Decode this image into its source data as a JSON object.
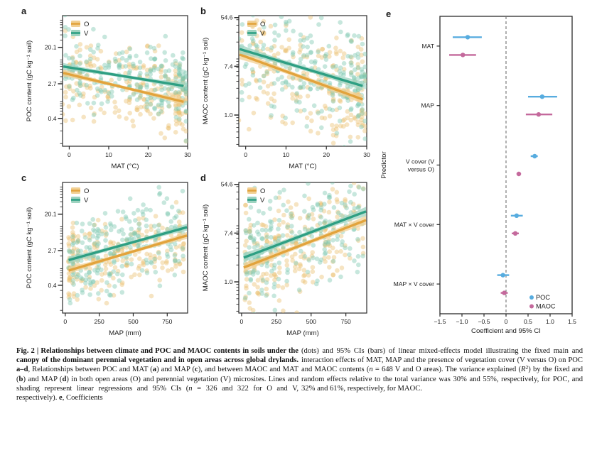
{
  "figure_label": "Fig. 2",
  "colors": {
    "o": {
      "line": "#E2A33C",
      "band": "#F1D094",
      "point": "#E9BE6E"
    },
    "v": {
      "line": "#2E9F83",
      "band": "#9ED3C0",
      "point": "#79C6AD"
    },
    "poc": "#57ACDF",
    "maoc": "#C4699C",
    "axis": "#2B2B2B",
    "zero_line": "#707070"
  },
  "chart_data": [
    {
      "id": "a",
      "letter": "a",
      "type": "scatter",
      "x_var": "MAT",
      "xlabel": "MAT (°C)",
      "ylabel": "POC content (gC kg⁻¹ soil)",
      "y_scale": "log",
      "grid": false,
      "legend_position": "top-left",
      "x_range": [
        -1.7,
        30
      ],
      "y_ln_range": [
        -2.45,
        4.75
      ],
      "x_ticks": [
        {
          "label": "0",
          "value": 0
        },
        {
          "label": "10",
          "value": 10
        },
        {
          "label": "20",
          "value": 20
        },
        {
          "label": "30",
          "value": 30
        }
      ],
      "y_ticks": [
        {
          "label": "20.1",
          "value": 20.1
        },
        {
          "label": "2.7",
          "value": 2.7
        },
        {
          "label": "0.4",
          "value": 0.4
        }
      ],
      "legend": [
        "O",
        "V"
      ],
      "series": [
        {
          "name": "O",
          "key": "o",
          "n": 326,
          "trend": {
            "x": [
              -1.5,
              29
            ],
            "y": [
              4.9,
              1.0
            ]
          }
        },
        {
          "name": "V",
          "key": "v",
          "n": 322,
          "trend": {
            "x": [
              -1.5,
              29
            ],
            "y": [
              7.0,
              2.4
            ]
          }
        }
      ]
    },
    {
      "id": "b",
      "letter": "b",
      "type": "scatter",
      "x_var": "MAT",
      "xlabel": "MAT (°C)",
      "ylabel": "MAOC content (gC kg⁻¹ soil)",
      "y_scale": "log",
      "grid": false,
      "legend_position": "top-left",
      "x_range": [
        -1.7,
        30
      ],
      "y_ln_range": [
        -1.28,
        4.08
      ],
      "x_ticks": [
        {
          "label": "0",
          "value": 0
        },
        {
          "label": "10",
          "value": 10
        },
        {
          "label": "20",
          "value": 20
        },
        {
          "label": "30",
          "value": 30
        }
      ],
      "y_ticks": [
        {
          "label": "54.6",
          "value": 54.6
        },
        {
          "label": "7.4",
          "value": 7.4
        },
        {
          "label": "1.0",
          "value": 1.0
        }
      ],
      "legend": [
        "O",
        "V"
      ],
      "series": [
        {
          "name": "O",
          "key": "o",
          "n": 326,
          "trend": {
            "x": [
              -1.5,
              29
            ],
            "y": [
              12.0,
              1.9
            ]
          }
        },
        {
          "name": "V",
          "key": "v",
          "n": 322,
          "trend": {
            "x": [
              -1.5,
              29
            ],
            "y": [
              15.0,
              3.3
            ]
          }
        }
      ]
    },
    {
      "id": "c",
      "letter": "c",
      "type": "scatter",
      "x_var": "MAP",
      "xlabel": "MAP (mm)",
      "ylabel": "POC content (gC kg⁻¹ soil)",
      "y_scale": "log",
      "grid": false,
      "legend_position": "top-left",
      "x_range": [
        -20,
        900
      ],
      "y_ln_range": [
        -2.45,
        4.75
      ],
      "x_ticks": [
        {
          "label": "0",
          "value": 0
        },
        {
          "label": "250",
          "value": 250
        },
        {
          "label": "500",
          "value": 500
        },
        {
          "label": "750",
          "value": 750
        }
      ],
      "y_ticks": [
        {
          "label": "20.1",
          "value": 20.1
        },
        {
          "label": "2.7",
          "value": 2.7
        },
        {
          "label": "0.4",
          "value": 0.4
        }
      ],
      "legend": [
        "O",
        "V"
      ],
      "series": [
        {
          "name": "O",
          "key": "o",
          "n": 326,
          "trend": {
            "x": [
              25,
              895
            ],
            "y": [
              0.9,
              6.2
            ]
          }
        },
        {
          "name": "V",
          "key": "v",
          "n": 322,
          "trend": {
            "x": [
              25,
              895
            ],
            "y": [
              1.6,
              9.8
            ]
          }
        }
      ]
    },
    {
      "id": "d",
      "letter": "d",
      "type": "scatter",
      "x_var": "MAP",
      "xlabel": "MAP (mm)",
      "ylabel": "MAOC content (gC kg⁻¹ soil)",
      "y_scale": "log",
      "grid": false,
      "legend_position": "top-left",
      "x_range": [
        -20,
        900
      ],
      "y_ln_range": [
        -1.28,
        4.08
      ],
      "x_ticks": [
        {
          "label": "0",
          "value": 0
        },
        {
          "label": "250",
          "value": 250
        },
        {
          "label": "500",
          "value": 500
        },
        {
          "label": "750",
          "value": 750
        }
      ],
      "y_ticks": [
        {
          "label": "54.6",
          "value": 54.6
        },
        {
          "label": "7.4",
          "value": 7.4
        },
        {
          "label": "1.0",
          "value": 1.0
        }
      ],
      "legend": [
        "O",
        "V"
      ],
      "series": [
        {
          "name": "O",
          "key": "o",
          "n": 326,
          "trend": {
            "x": [
              15,
              895
            ],
            "y": [
              1.8,
              12.6
            ]
          }
        },
        {
          "name": "V",
          "key": "v",
          "n": 322,
          "trend": {
            "x": [
              15,
              895
            ],
            "y": [
              2.7,
              18.0
            ]
          }
        }
      ]
    },
    {
      "id": "e",
      "letter": "e",
      "type": "dot_interval",
      "xlabel": "Coefficient and 95% CI",
      "ylabel": "Predictor",
      "x_range": [
        -1.5,
        1.5
      ],
      "zero_line": 0,
      "grid": false,
      "legend_position": "bottom-right",
      "x_ticks": [
        {
          "label": "−1.5",
          "value": -1.5
        },
        {
          "label": "−1.0",
          "value": -1.0
        },
        {
          "label": "−0.5",
          "value": -0.5
        },
        {
          "label": "0",
          "value": 0
        },
        {
          "label": "0.5",
          "value": 0.5
        },
        {
          "label": "1.0",
          "value": 1.0
        },
        {
          "label": "1.5",
          "value": 1.5
        }
      ],
      "categories": [
        {
          "label": "MAT",
          "lines": [
            "MAT"
          ]
        },
        {
          "label": "MAP",
          "lines": [
            "MAP"
          ]
        },
        {
          "label": "V cover (V versus O)",
          "lines": [
            "V cover (V",
            "versus O)"
          ]
        },
        {
          "label": "MAT × V cover",
          "lines": [
            "MAT × V cover"
          ]
        },
        {
          "label": "MAP × V cover",
          "lines": [
            "MAP × V cover"
          ]
        }
      ],
      "series": [
        {
          "name": "POC",
          "color_key": "poc",
          "values": [
            {
              "est": -0.87,
              "lo": -1.21,
              "hi": -0.55
            },
            {
              "est": 0.82,
              "lo": 0.5,
              "hi": 1.16
            },
            {
              "est": 0.65,
              "lo": 0.56,
              "hi": 0.72
            },
            {
              "est": 0.24,
              "lo": 0.11,
              "hi": 0.38
            },
            {
              "est": -0.07,
              "lo": -0.2,
              "hi": 0.07
            }
          ]
        },
        {
          "name": "MAOC",
          "color_key": "maoc",
          "values": [
            {
              "est": -0.98,
              "lo": -1.29,
              "hi": -0.68
            },
            {
              "est": 0.74,
              "lo": 0.45,
              "hi": 1.05
            },
            {
              "est": 0.29,
              "lo": 0.24,
              "hi": 0.34
            },
            {
              "est": 0.21,
              "lo": 0.13,
              "hi": 0.29
            },
            {
              "est": -0.04,
              "lo": -0.12,
              "hi": 0.04
            }
          ]
        }
      ],
      "legend": [
        {
          "label": "POC",
          "color_key": "poc"
        },
        {
          "label": "MAOC",
          "color_key": "maoc"
        }
      ]
    }
  ],
  "caption": {
    "left": [
      {
        "t": "Fig. 2 | Relationships between climate and POC and MAOC contents in soils under the canopy of the dominant perennial vegetation and in open areas across global drylands. ",
        "b": true
      },
      {
        "t": "a–d",
        "b": true
      },
      {
        "t": ", Relationships between POC and MAT ("
      },
      {
        "t": "a",
        "b": true
      },
      {
        "t": ") and MAP ("
      },
      {
        "t": "c",
        "b": true
      },
      {
        "t": "), and between MAOC and MAT ("
      },
      {
        "t": "b",
        "b": true
      },
      {
        "t": ") and MAP ("
      },
      {
        "t": "d",
        "b": true
      },
      {
        "t": ") in both open areas (O) and perennial vegetation (V) microsites. Lines and shading represent linear regressions and 95% CIs ("
      },
      {
        "t": "n",
        "i": true
      },
      {
        "t": " = 326 and 322 for O and V, respectively). "
      },
      {
        "t": "e",
        "b": true
      },
      {
        "t": ", Coefficients"
      }
    ],
    "right": [
      {
        "t": "(dots) and 95% CIs (bars) of linear mixed-effects model illustrating the fixed main and interaction effects of MAT, MAP and the presence of vegetation cover (V versus O) on POC and MAOC contents ("
      },
      {
        "t": "n",
        "i": true
      },
      {
        "t": " = 648 V and O areas). The variance explained ("
      },
      {
        "t": "R",
        "i": true
      },
      {
        "t": "2",
        "sup": true
      },
      {
        "t": ") by the fixed and random effects relative to the total variance was 30% and 55%, respectively, for POC, and 32% and 61%, respectively, for MAOC."
      }
    ]
  }
}
